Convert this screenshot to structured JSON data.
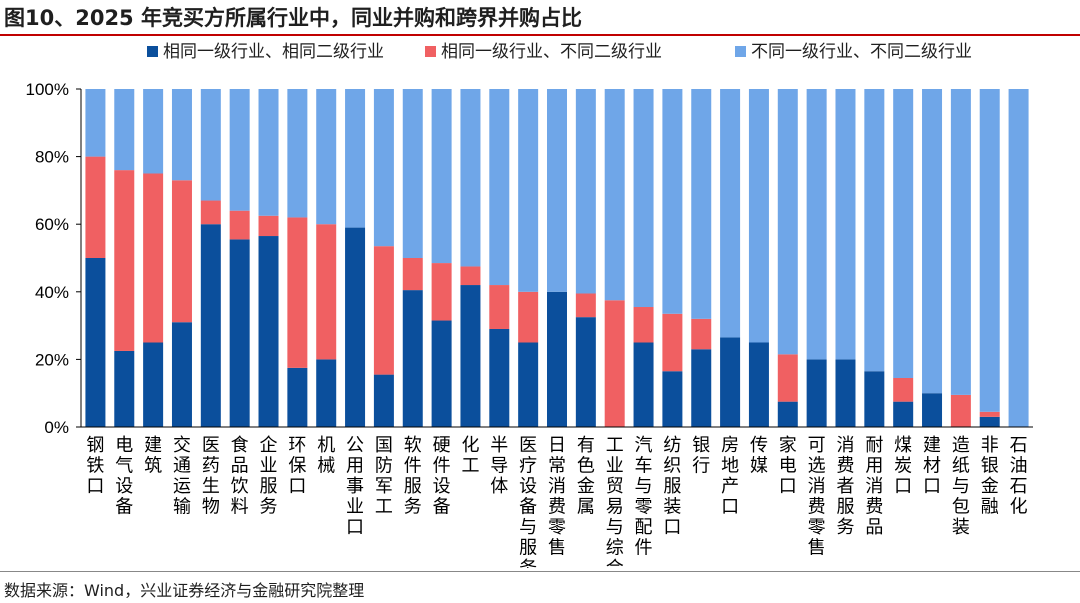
{
  "title": "图10、2025 年竞买方所属行业中，同业并购和跨界并购占比",
  "source": "数据来源：Wind，兴业证券经济与金融研究院整理",
  "colors": {
    "same_both": "#0b4f9c",
    "same_first_diff_second": "#f06062",
    "diff_both": "#6fa6e8"
  },
  "chart_data": {
    "type": "bar",
    "stacked": true,
    "title": "",
    "xlabel": "",
    "ylabel": "",
    "ylim": [
      0,
      100
    ],
    "yticks": [
      "0%",
      "20%",
      "40%",
      "60%",
      "80%",
      "100%"
    ],
    "legend_position": "top",
    "categories": [
      "钢铁口",
      "电气设备",
      "建筑",
      "交通运输",
      "医药生物",
      "食品饮料",
      "企业服务",
      "环保口",
      "机械",
      "公用事业口",
      "国防军工",
      "软件服务",
      "硬件设备",
      "化工",
      "半导体",
      "医疗设备与服务",
      "日常消费零售",
      "有色金属",
      "工业贸易与综合",
      "汽车与零配件",
      "纺织服装口",
      "银行",
      "房地产口",
      "传媒",
      "家电口",
      "可选消费零售",
      "消费者服务",
      "耐用消费品",
      "煤炭口",
      "建材口",
      "造纸与包装",
      "非银金融",
      "石油石化"
    ],
    "series": [
      {
        "name": "相同一级行业、相同二级行业",
        "color_key": "same_both",
        "values": [
          50,
          22.5,
          25,
          31,
          60,
          55.5,
          56.5,
          17.5,
          20,
          59,
          15.5,
          40.5,
          31.5,
          42,
          29,
          25,
          40,
          32.5,
          0,
          25,
          16.5,
          23,
          26.5,
          25,
          7.5,
          20,
          20,
          16.5,
          7.5,
          10,
          0,
          3,
          0
        ]
      },
      {
        "name": "相同一级行业、不同二级行业",
        "color_key": "same_first_diff_second",
        "values": [
          30,
          53.5,
          50,
          42,
          7,
          8.5,
          6,
          44.5,
          40,
          0,
          38,
          9.5,
          17,
          5.5,
          13,
          15,
          0,
          7,
          37.5,
          10.5,
          17,
          9,
          0,
          0,
          14,
          0,
          0,
          0,
          7,
          0,
          9.5,
          1.5,
          0
        ]
      },
      {
        "name": "不同一级行业、不同二级行业",
        "color_key": "diff_both",
        "values": [
          20,
          24,
          25,
          27,
          33,
          36,
          37.5,
          38,
          40,
          41,
          46.5,
          50,
          51.5,
          52.5,
          58,
          60,
          60,
          60.5,
          62.5,
          64.5,
          66.5,
          68,
          73.5,
          75,
          78.5,
          80,
          80,
          83.5,
          85.5,
          90,
          90.5,
          95.5,
          100
        ]
      }
    ]
  }
}
